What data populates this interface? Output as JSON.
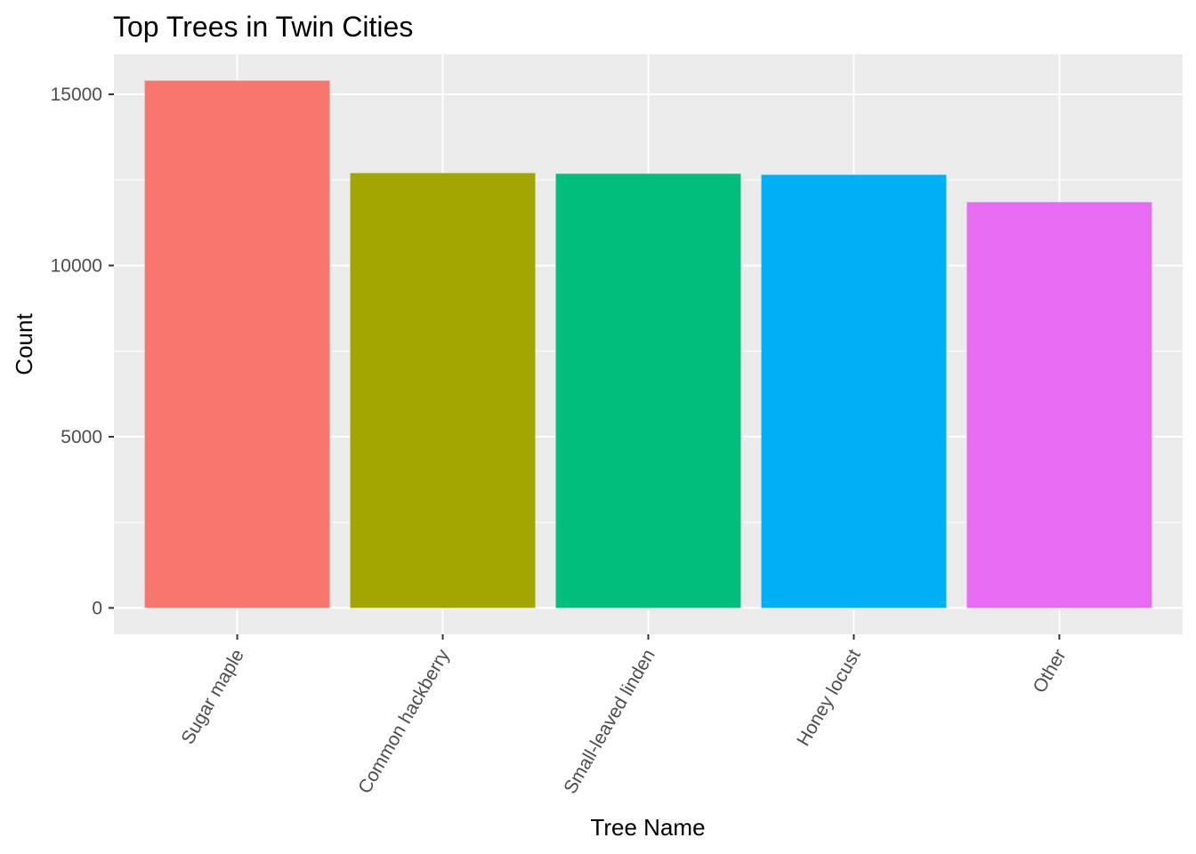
{
  "chart_data": {
    "type": "bar",
    "title": "Top Trees in Twin Cities",
    "xlabel": "Tree Name",
    "ylabel": "Count",
    "categories": [
      "Sugar maple",
      "Common hackberry",
      "Small-leaved linden",
      "Honey locust",
      "Other"
    ],
    "values": [
      15400,
      12700,
      12680,
      12650,
      11850
    ],
    "colors": [
      "#F8766D",
      "#A3A500",
      "#00BF7D",
      "#00B0F6",
      "#E76BF3"
    ],
    "yticks": [
      0,
      5000,
      10000,
      15000
    ],
    "ylim": [
      -770,
      16170
    ],
    "grid": true,
    "legend": "none",
    "panel_background": "#EBEBEB",
    "grid_color": "#FFFFFF"
  }
}
